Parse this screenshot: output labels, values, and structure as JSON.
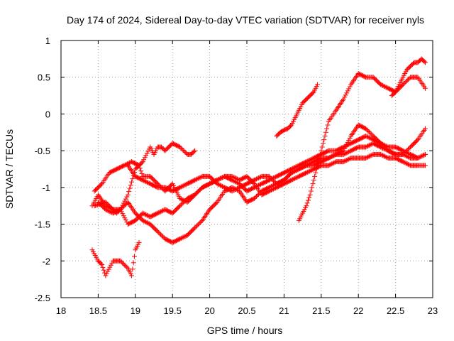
{
  "chart_data": {
    "type": "scatter",
    "title": "Day 174 of 2024, Sidereal Day-to-day VTEC variation (SDTVAR) for receiver nyls",
    "xlabel": "GPS time / hours",
    "ylabel": "SDTVAR / TECUs",
    "xlim": [
      18,
      23
    ],
    "ylim": [
      -2.5,
      1
    ],
    "xticks": [
      18,
      18.5,
      19,
      19.5,
      20,
      20.5,
      21,
      21.5,
      22,
      22.5,
      23
    ],
    "xtick_labels": [
      "18",
      "18.5",
      "19",
      "19.5",
      "20",
      "20.5",
      "21",
      "21.5",
      "22",
      "22.5",
      "23"
    ],
    "yticks": [
      1,
      0.5,
      0,
      -0.5,
      -1,
      -1.5,
      -2,
      -2.5
    ],
    "ytick_labels": [
      "1",
      "0.5",
      "0",
      "-0.5",
      "-1",
      "-1.5",
      "-2",
      "-2.5"
    ],
    "grid": true,
    "marker": "+",
    "color": "#ff0000",
    "series": [
      {
        "name": "s1",
        "x": [
          18.42,
          18.5,
          18.55,
          18.6,
          18.7,
          18.8,
          18.9,
          18.95,
          19.0,
          19.05
        ],
        "y": [
          -1.85,
          -2.0,
          -2.05,
          -2.2,
          -2.0,
          -2.0,
          -2.1,
          -2.2,
          -1.85,
          -1.75
        ]
      },
      {
        "name": "s2",
        "x": [
          18.42,
          18.5,
          18.6,
          18.7,
          18.8,
          18.9,
          19.0,
          19.1,
          19.2,
          19.25,
          19.3,
          19.35,
          19.4,
          19.45,
          19.5,
          19.6,
          19.7,
          19.75,
          19.8
        ],
        "y": [
          -1.25,
          -1.1,
          -1.25,
          -1.3,
          -1.3,
          -1.1,
          -0.75,
          -0.65,
          -0.45,
          -0.55,
          -0.45,
          -0.45,
          -0.5,
          -0.45,
          -0.4,
          -0.45,
          -0.55,
          -0.55,
          -0.5
        ]
      },
      {
        "name": "s3",
        "x": [
          18.45,
          18.55,
          18.65,
          18.75,
          18.85,
          18.95,
          19.05,
          19.1,
          19.2,
          19.3,
          19.4,
          19.5,
          19.6,
          19.7,
          19.8,
          19.9,
          20.0,
          20.1,
          20.2,
          20.3,
          20.4,
          20.5,
          20.6,
          20.7,
          20.8,
          20.9,
          21.0,
          21.1,
          21.2,
          21.3,
          21.4,
          21.5,
          21.6,
          21.7,
          21.8,
          21.9,
          22.0,
          22.1,
          22.2,
          22.3,
          22.4,
          22.5,
          22.6,
          22.7,
          22.8,
          22.9
        ],
        "y": [
          -1.05,
          -0.95,
          -0.8,
          -0.75,
          -0.7,
          -0.65,
          -0.7,
          -0.85,
          -0.85,
          -0.95,
          -1.05,
          -0.95,
          -1.15,
          -1.2,
          -1.1,
          -1.0,
          -0.95,
          -0.9,
          -0.85,
          -0.85,
          -0.9,
          -0.85,
          -0.95,
          -1.1,
          -1.05,
          -1.0,
          -0.95,
          -0.9,
          -0.85,
          -0.8,
          -0.75,
          -0.7,
          -0.7,
          -0.65,
          -0.65,
          -0.6,
          -0.6,
          -0.6,
          -0.55,
          -0.55,
          -0.6,
          -0.6,
          -0.65,
          -0.7,
          -0.7,
          -0.7
        ]
      },
      {
        "name": "s4",
        "x": [
          18.45,
          18.6,
          18.75,
          18.9,
          19.0,
          19.1,
          19.2,
          19.3,
          19.4,
          19.5,
          19.6,
          19.7,
          19.8,
          19.9,
          20.0,
          20.1,
          20.2,
          20.3,
          20.4,
          20.5,
          20.6,
          20.7,
          20.8,
          20.9,
          21.0,
          21.1,
          21.2,
          21.3,
          21.4,
          21.5,
          21.6,
          21.7,
          21.8,
          21.9,
          22.0,
          22.1,
          22.2,
          22.3,
          22.4,
          22.5,
          22.6,
          22.7,
          22.8,
          22.9
        ],
        "y": [
          -1.25,
          -1.2,
          -1.35,
          -1.2,
          -1.35,
          -1.45,
          -1.5,
          -1.6,
          -1.7,
          -1.75,
          -1.7,
          -1.65,
          -1.55,
          -1.45,
          -1.3,
          -1.2,
          -1.05,
          -1.0,
          -1.05,
          -1.2,
          -1.15,
          -1.05,
          -1.0,
          -0.95,
          -0.9,
          -0.8,
          -0.75,
          -0.7,
          -0.65,
          -0.6,
          -0.6,
          -0.55,
          -0.55,
          -0.5,
          -0.45,
          -0.45,
          -0.4,
          -0.45,
          -0.5,
          -0.55,
          -0.55,
          -0.6,
          -0.6,
          -0.55
        ]
      },
      {
        "name": "s5",
        "x": [
          18.5,
          18.6,
          18.7,
          18.8,
          18.9,
          19.0,
          19.1,
          19.2,
          19.3,
          19.4,
          19.5,
          19.6,
          19.7,
          19.8,
          19.9,
          20.0,
          20.1,
          20.2,
          20.3,
          20.4,
          20.5,
          20.6,
          20.7,
          20.8,
          20.9,
          21.0,
          21.1,
          21.2,
          21.3,
          21.4,
          21.5,
          21.6,
          21.7,
          21.8,
          21.9,
          22.0,
          22.1,
          22.2,
          22.3,
          22.4,
          22.5,
          22.6,
          22.7,
          22.8,
          22.9
        ],
        "y": [
          -1.2,
          -1.3,
          -1.35,
          -1.3,
          -1.5,
          -1.45,
          -1.35,
          -1.4,
          -1.35,
          -1.3,
          -1.35,
          -1.25,
          -1.15,
          -1.1,
          -1.0,
          -0.95,
          -0.9,
          -0.85,
          -0.9,
          -0.95,
          -1.05,
          -1.0,
          -0.95,
          -0.9,
          -0.85,
          -0.8,
          -0.75,
          -0.7,
          -0.65,
          -0.6,
          -0.55,
          -0.5,
          -0.5,
          -0.45,
          -0.4,
          -0.35,
          -0.3,
          -0.35,
          -0.4,
          -0.45,
          -0.45,
          -0.5,
          -0.55,
          -0.6,
          -0.55
        ]
      },
      {
        "name": "s6",
        "x": [
          18.9,
          19.0,
          19.1,
          19.2,
          19.3,
          19.4,
          19.5,
          19.6,
          19.7,
          19.8,
          19.9,
          20.0,
          20.1,
          20.2,
          20.3,
          20.4,
          20.5,
          20.6,
          20.7,
          20.8,
          20.9,
          21.0,
          21.1,
          21.2,
          21.3,
          21.4,
          21.5,
          21.6,
          21.7,
          21.8,
          21.9,
          22.0,
          22.1,
          22.2,
          22.3,
          22.4,
          22.5,
          22.6,
          22.7,
          22.8,
          22.9
        ],
        "y": [
          -0.7,
          -0.85,
          -0.9,
          -0.95,
          -1.0,
          -1.0,
          -1.05,
          -1.0,
          -0.95,
          -0.9,
          -0.85,
          -0.85,
          -0.95,
          -1.0,
          -1.05,
          -1.0,
          -0.95,
          -0.9,
          -0.85,
          -0.85,
          -0.95,
          -0.9,
          -0.8,
          -0.75,
          -0.7,
          -0.7,
          -0.65,
          -0.6,
          -0.55,
          -0.5,
          -0.3,
          -0.15,
          -0.2,
          -0.3,
          -0.4,
          -0.5,
          -0.55,
          -0.55,
          -0.45,
          -0.35,
          -0.2
        ]
      },
      {
        "name": "s7",
        "x": [
          20.9,
          20.95,
          21.0,
          21.05,
          21.1,
          21.15,
          21.2,
          21.25,
          21.3,
          21.35,
          21.4,
          21.45
        ],
        "y": [
          -0.3,
          -0.25,
          -0.22,
          -0.2,
          -0.15,
          -0.05,
          0.05,
          0.15,
          0.2,
          0.25,
          0.3,
          0.4
        ]
      },
      {
        "name": "s8",
        "x": [
          21.2,
          21.25,
          21.3,
          21.35,
          21.4,
          21.5,
          21.6,
          21.7,
          21.8,
          21.9,
          22.0,
          22.1,
          22.2,
          22.3,
          22.4,
          22.5,
          22.6,
          22.7,
          22.8,
          22.9
        ],
        "y": [
          -1.45,
          -1.35,
          -1.25,
          -1.1,
          -0.9,
          -0.5,
          -0.1,
          0.05,
          0.2,
          0.4,
          0.55,
          0.5,
          0.5,
          0.4,
          0.35,
          0.3,
          0.4,
          0.5,
          0.5,
          0.35
        ]
      },
      {
        "name": "s9",
        "x": [
          22.45,
          22.5,
          22.55,
          22.6,
          22.65,
          22.7,
          22.75,
          22.8,
          22.85,
          22.9
        ],
        "y": [
          0.25,
          0.3,
          0.4,
          0.5,
          0.6,
          0.65,
          0.7,
          0.7,
          0.75,
          0.7
        ]
      }
    ]
  }
}
